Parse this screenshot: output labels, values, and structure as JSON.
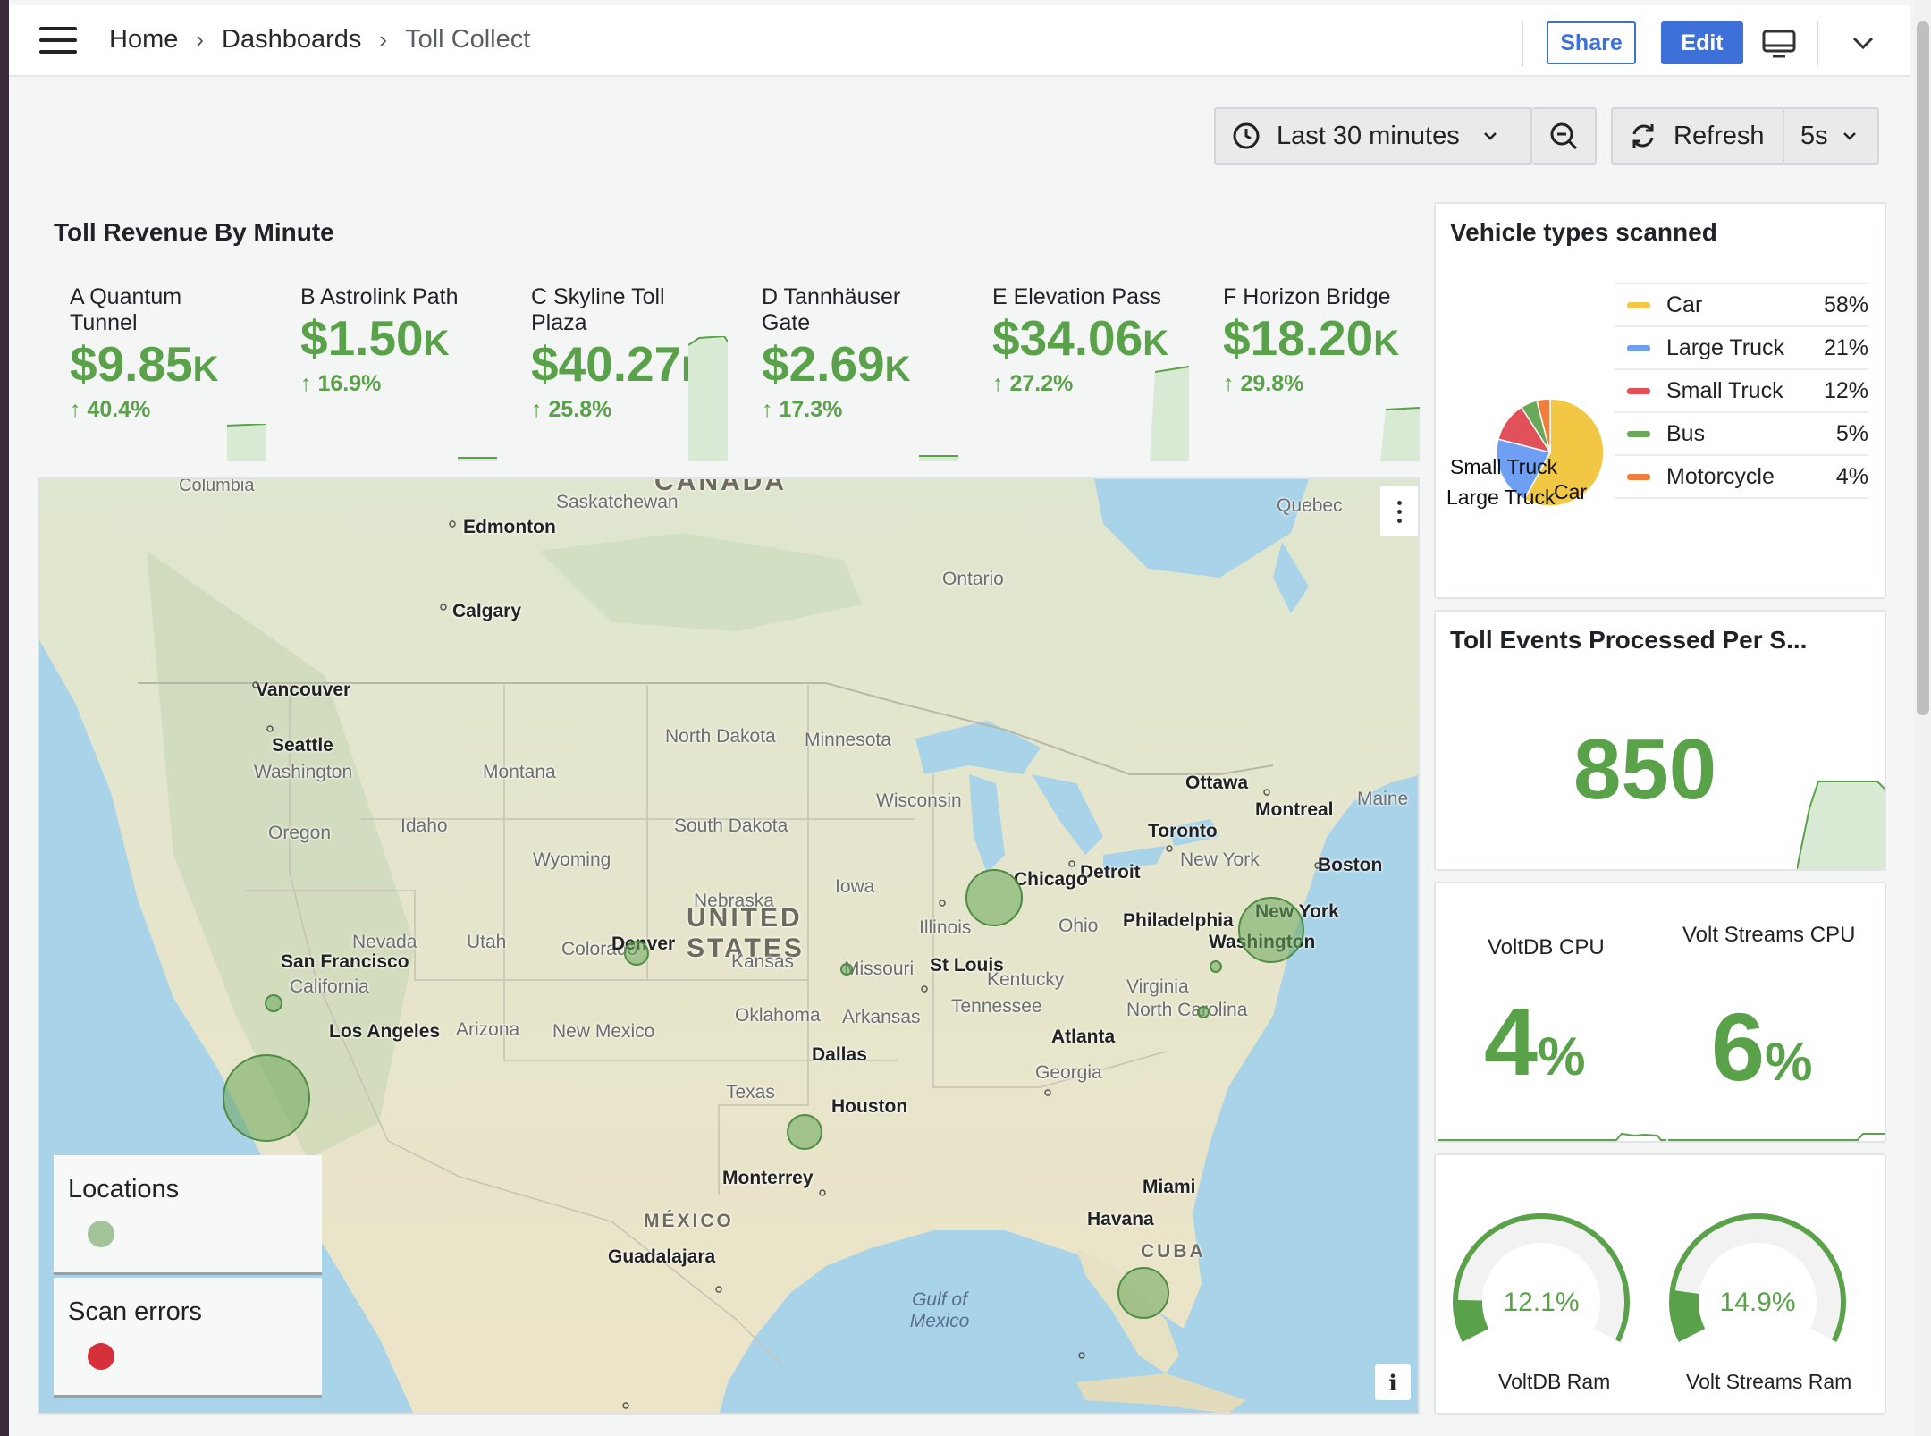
{
  "breadcrumb": {
    "home": "Home",
    "dashboards": "Dashboards",
    "current": "Toll Collect"
  },
  "toolbar": {
    "share": "Share",
    "edit": "Edit"
  },
  "time": {
    "range": "Last 30 minutes",
    "refresh": "Refresh",
    "interval": "5s"
  },
  "revenue": {
    "title": "Toll Revenue By Minute",
    "stats": [
      {
        "name": "A Quantum Tunnel",
        "value": "$9.85",
        "unit": "K",
        "change": "40.4%"
      },
      {
        "name": "B Astrolink Path",
        "value": "$1.50",
        "unit": "K",
        "change": "16.9%"
      },
      {
        "name": "C Skyline Toll Plaza",
        "value": "$40.27",
        "unit": "K",
        "change": "25.8%"
      },
      {
        "name": "D Tannhäuser Gate",
        "value": "$2.69",
        "unit": "K",
        "change": "17.3%"
      },
      {
        "name": "E Elevation Pass",
        "value": "$34.06",
        "unit": "K",
        "change": "27.2%"
      },
      {
        "name": "F Horizon Bridge",
        "value": "$18.20",
        "unit": "K",
        "change": "29.8%"
      }
    ]
  },
  "map": {
    "legend": [
      {
        "label": "Locations",
        "color": "#a3c49a"
      },
      {
        "label": "Scan errors",
        "color": "#d6313b"
      }
    ],
    "places": {
      "canada": "CANADA",
      "columbia": "Columbia",
      "saskatchewan": "Saskatchewan",
      "edmonton": "Edmonton",
      "calgary": "Calgary",
      "vancouver": "Vancouver",
      "seattle": "Seattle",
      "washington_state": "Washington",
      "montana": "Montana",
      "oregon": "Oregon",
      "idaho": "Idaho",
      "wyoming": "Wyoming",
      "north_dakota": "North Dakota",
      "south_dakota": "South Dakota",
      "minnesota": "Minnesota",
      "wisconsin": "Wisconsin",
      "ontario": "Ontario",
      "quebec": "Quebec",
      "ottawa": "Ottawa",
      "montreal": "Montreal",
      "maine": "Maine",
      "toronto": "Toronto",
      "new_york_state": "New York",
      "boston": "Boston",
      "detroit": "Detroit",
      "chicago": "Chicago",
      "iowa": "Iowa",
      "nebraska": "Nebraska",
      "united": "UNITED",
      "states": "STATES",
      "nevada": "Nevada",
      "utah": "Utah",
      "colorado": "Colorado",
      "denver": "Denver",
      "kansas": "Kansas",
      "illinois": "Illinois",
      "ohio": "Ohio",
      "philadelphia": "Philadelphia",
      "new_york": "New York",
      "washington_dc": "Washington",
      "san_francisco": "San Francisco",
      "california": "California",
      "st_louis": "St Louis",
      "missouri": "Missouri",
      "kentucky": "Kentucky",
      "virginia": "Virginia",
      "north_carolina": "North Carolina",
      "tennessee": "Tennessee",
      "oklahoma": "Oklahoma",
      "arkansas": "Arkansas",
      "los_angeles": "Los Angeles",
      "arizona": "Arizona",
      "new_mexico": "New Mexico",
      "atlanta": "Atlanta",
      "georgia": "Georgia",
      "dallas": "Dallas",
      "texas": "Texas",
      "houston": "Houston",
      "monterrey": "Monterrey",
      "gulf": "Gulf of Mexico",
      "mexico": "MÉXICO",
      "miami": "Miami",
      "havana": "Havana",
      "cuba": "CUBA",
      "guadalajara": "Guadalajara"
    }
  },
  "vehicles": {
    "title": "Vehicle types scanned",
    "items": [
      {
        "label": "Car",
        "pct": "58%",
        "value": 58,
        "color": "#f2c744"
      },
      {
        "label": "Large Truck",
        "pct": "21%",
        "value": 21,
        "color": "#6e9ff2"
      },
      {
        "label": "Small Truck",
        "pct": "12%",
        "value": 12,
        "color": "#e0515a"
      },
      {
        "label": "Bus",
        "pct": "5%",
        "value": 5,
        "color": "#6aa85a"
      },
      {
        "label": "Motorcycle",
        "pct": "4%",
        "value": 4,
        "color": "#f07d3a"
      }
    ]
  },
  "events": {
    "title": "Toll Events Processed Per S...",
    "value": "850"
  },
  "cpu": {
    "voltdb_label": "VoltDB CPU",
    "voltdb_value": "4",
    "streams_label": "Volt Streams CPU",
    "streams_value": "6",
    "unit": "%"
  },
  "ram": {
    "voltdb": {
      "label": "VoltDB Ram",
      "value": "12.1%",
      "pct": 12.1
    },
    "streams": {
      "label": "Volt Streams Ram",
      "value": "14.9%",
      "pct": 14.9
    }
  }
}
